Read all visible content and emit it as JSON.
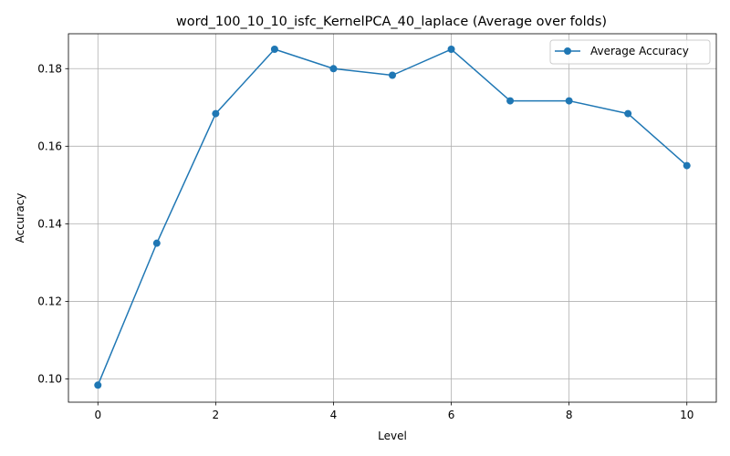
{
  "chart_data": {
    "type": "line",
    "title": "word_100_10_10_isfc_KernelPCA_40_laplace (Average over folds)",
    "xlabel": "Level",
    "ylabel": "Accuracy",
    "xlim": [
      -0.5,
      10.5
    ],
    "ylim": [
      0.094,
      0.189
    ],
    "xticks": [
      0,
      2,
      4,
      6,
      8,
      10
    ],
    "xtick_labels": [
      "0",
      "2",
      "4",
      "6",
      "8",
      "10"
    ],
    "yticks": [
      0.1,
      0.12,
      0.14,
      0.16,
      0.18
    ],
    "ytick_labels": [
      "0.10",
      "0.12",
      "0.14",
      "0.16",
      "0.18"
    ],
    "grid": true,
    "legend_position": "top-right",
    "series": [
      {
        "name": "Average Accuracy",
        "color": "#1f77b4",
        "marker": "circle",
        "x": [
          0,
          1,
          2,
          3,
          4,
          5,
          6,
          7,
          8,
          9,
          10
        ],
        "y": [
          0.0984,
          0.135,
          0.1684,
          0.185,
          0.18,
          0.1783,
          0.185,
          0.1717,
          0.1717,
          0.1684,
          0.155
        ]
      }
    ]
  }
}
